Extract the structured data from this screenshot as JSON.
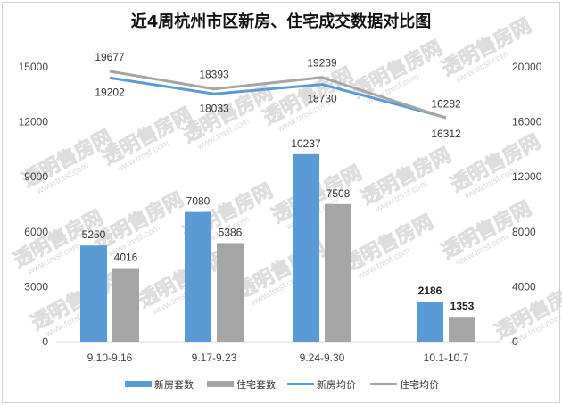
{
  "chart_data": {
    "type": "bar+line",
    "title": "近4周杭州市区新房、住宅成交数据对比图",
    "categories": [
      "9.10-9.16",
      "9.17-9.23",
      "9.24-9.30",
      "10.1-10.7"
    ],
    "left_axis": {
      "ylim": [
        0,
        15000
      ],
      "ticks": [
        0,
        3000,
        6000,
        9000,
        12000,
        15000
      ]
    },
    "right_axis": {
      "ylim": [
        0,
        20000
      ],
      "ticks": [
        0,
        4000,
        8000,
        12000,
        16000,
        20000
      ]
    },
    "bar_series": [
      {
        "name": "新房套数",
        "color": "#5b9bd5",
        "values": [
          5250,
          7080,
          10237,
          2186
        ],
        "bold_last": true
      },
      {
        "name": "住宅套数",
        "color": "#a5a5a5",
        "values": [
          4016,
          5386,
          7508,
          1353
        ],
        "bold_last": true
      }
    ],
    "line_series": [
      {
        "name": "新房均价",
        "color": "#5b9bd5",
        "axis": "right",
        "values": [
          19202,
          18033,
          18730,
          16312
        ]
      },
      {
        "name": "住宅均价",
        "color": "#a5a5a5",
        "axis": "right",
        "values": [
          19677,
          18393,
          19239,
          16282
        ]
      }
    ],
    "legend_position": "bottom",
    "grid": false
  },
  "watermark": {
    "text": "透明售房网",
    "url": "www.tmsf.com"
  }
}
